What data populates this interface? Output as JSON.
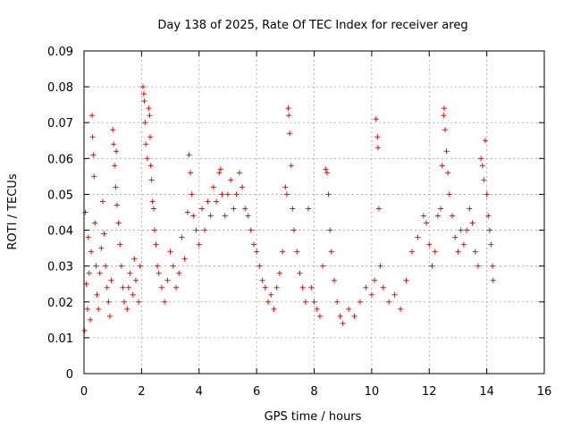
{
  "chart_data": {
    "type": "scatter",
    "title": "Day 138 of 2025, Rate Of TEC Index for receiver areg",
    "xlabel": "GPS time / hours",
    "ylabel": "ROTI / TECUs",
    "xlim": [
      0,
      16
    ],
    "ylim": [
      0,
      0.09
    ],
    "xticks": [
      "0",
      "2",
      "4",
      "6",
      "8",
      "10",
      "12",
      "14",
      "16"
    ],
    "yticks": [
      "0",
      "0.01",
      "0.02",
      "0.03",
      "0.04",
      "0.05",
      "0.06",
      "0.07",
      "0.08",
      "0.09"
    ],
    "grid": true,
    "marker": "+",
    "color": "#ff0000",
    "series": [
      {
        "points": [
          [
            0.02,
            0.012
          ],
          [
            0.05,
            0.045
          ],
          [
            0.08,
            0.025
          ],
          [
            0.12,
            0.018
          ],
          [
            0.15,
            0.038
          ],
          [
            0.18,
            0.028
          ],
          [
            0.22,
            0.015
          ],
          [
            0.25,
            0.034
          ],
          [
            0.28,
            0.072
          ],
          [
            0.3,
            0.066
          ],
          [
            0.32,
            0.061
          ],
          [
            0.35,
            0.055
          ],
          [
            0.38,
            0.042
          ],
          [
            0.42,
            0.03
          ],
          [
            0.45,
            0.022
          ],
          [
            0.5,
            0.018
          ],
          [
            0.55,
            0.028
          ],
          [
            0.6,
            0.035
          ],
          [
            0.65,
            0.048
          ],
          [
            0.7,
            0.039
          ],
          [
            0.75,
            0.03
          ],
          [
            0.8,
            0.024
          ],
          [
            0.85,
            0.02
          ],
          [
            0.9,
            0.016
          ],
          [
            0.95,
            0.026
          ],
          [
            1.0,
            0.068
          ],
          [
            1.03,
            0.064
          ],
          [
            1.06,
            0.058
          ],
          [
            1.1,
            0.052
          ],
          [
            1.12,
            0.062
          ],
          [
            1.15,
            0.047
          ],
          [
            1.2,
            0.042
          ],
          [
            1.25,
            0.036
          ],
          [
            1.3,
            0.03
          ],
          [
            1.35,
            0.024
          ],
          [
            1.4,
            0.02
          ],
          [
            1.5,
            0.018
          ],
          [
            1.55,
            0.024
          ],
          [
            1.6,
            0.028
          ],
          [
            1.7,
            0.022
          ],
          [
            1.75,
            0.032
          ],
          [
            1.8,
            0.026
          ],
          [
            1.9,
            0.02
          ],
          [
            1.95,
            0.03
          ],
          [
            2.05,
            0.08
          ],
          [
            2.08,
            0.078
          ],
          [
            2.1,
            0.076
          ],
          [
            2.12,
            0.07
          ],
          [
            2.15,
            0.064
          ],
          [
            2.2,
            0.06
          ],
          [
            2.25,
            0.074
          ],
          [
            2.28,
            0.072
          ],
          [
            2.3,
            0.066
          ],
          [
            2.32,
            0.058
          ],
          [
            2.35,
            0.054
          ],
          [
            2.38,
            0.048
          ],
          [
            2.42,
            0.046
          ],
          [
            2.45,
            0.04
          ],
          [
            2.5,
            0.036
          ],
          [
            2.55,
            0.03
          ],
          [
            2.6,
            0.028
          ],
          [
            2.7,
            0.024
          ],
          [
            2.8,
            0.02
          ],
          [
            2.9,
            0.026
          ],
          [
            3.0,
            0.034
          ],
          [
            3.1,
            0.03
          ],
          [
            3.2,
            0.024
          ],
          [
            3.3,
            0.028
          ],
          [
            3.4,
            0.038
          ],
          [
            3.5,
            0.032
          ],
          [
            3.6,
            0.045
          ],
          [
            3.65,
            0.061
          ],
          [
            3.7,
            0.056
          ],
          [
            3.75,
            0.05
          ],
          [
            3.8,
            0.044
          ],
          [
            3.9,
            0.04
          ],
          [
            4.0,
            0.036
          ],
          [
            4.1,
            0.046
          ],
          [
            4.2,
            0.04
          ],
          [
            4.3,
            0.048
          ],
          [
            4.4,
            0.044
          ],
          [
            4.5,
            0.052
          ],
          [
            4.6,
            0.048
          ],
          [
            4.7,
            0.056
          ],
          [
            4.75,
            0.057
          ],
          [
            4.8,
            0.05
          ],
          [
            4.9,
            0.044
          ],
          [
            5.0,
            0.05
          ],
          [
            5.1,
            0.054
          ],
          [
            5.2,
            0.046
          ],
          [
            5.3,
            0.05
          ],
          [
            5.4,
            0.056
          ],
          [
            5.5,
            0.052
          ],
          [
            5.6,
            0.046
          ],
          [
            5.7,
            0.044
          ],
          [
            5.8,
            0.04
          ],
          [
            5.9,
            0.036
          ],
          [
            6.0,
            0.034
          ],
          [
            6.1,
            0.03
          ],
          [
            6.2,
            0.026
          ],
          [
            6.3,
            0.024
          ],
          [
            6.4,
            0.02
          ],
          [
            6.5,
            0.022
          ],
          [
            6.6,
            0.018
          ],
          [
            6.7,
            0.024
          ],
          [
            6.8,
            0.028
          ],
          [
            6.9,
            0.034
          ],
          [
            7.0,
            0.052
          ],
          [
            7.05,
            0.05
          ],
          [
            7.1,
            0.074
          ],
          [
            7.12,
            0.072
          ],
          [
            7.15,
            0.067
          ],
          [
            7.2,
            0.058
          ],
          [
            7.25,
            0.046
          ],
          [
            7.3,
            0.04
          ],
          [
            7.4,
            0.034
          ],
          [
            7.5,
            0.028
          ],
          [
            7.6,
            0.024
          ],
          [
            7.7,
            0.02
          ],
          [
            7.8,
            0.046
          ],
          [
            7.9,
            0.024
          ],
          [
            8.0,
            0.02
          ],
          [
            8.1,
            0.018
          ],
          [
            8.2,
            0.016
          ],
          [
            8.3,
            0.03
          ],
          [
            8.4,
            0.057
          ],
          [
            8.45,
            0.056
          ],
          [
            8.5,
            0.05
          ],
          [
            8.55,
            0.04
          ],
          [
            8.6,
            0.034
          ],
          [
            8.7,
            0.026
          ],
          [
            8.8,
            0.02
          ],
          [
            8.9,
            0.016
          ],
          [
            9.0,
            0.014
          ],
          [
            9.2,
            0.018
          ],
          [
            9.4,
            0.016
          ],
          [
            9.6,
            0.02
          ],
          [
            9.8,
            0.024
          ],
          [
            10.0,
            0.022
          ],
          [
            10.1,
            0.026
          ],
          [
            10.15,
            0.071
          ],
          [
            10.2,
            0.066
          ],
          [
            10.22,
            0.063
          ],
          [
            10.25,
            0.046
          ],
          [
            10.3,
            0.03
          ],
          [
            10.4,
            0.024
          ],
          [
            10.6,
            0.02
          ],
          [
            10.8,
            0.022
          ],
          [
            11.0,
            0.018
          ],
          [
            11.2,
            0.026
          ],
          [
            11.4,
            0.034
          ],
          [
            11.6,
            0.038
          ],
          [
            11.8,
            0.044
          ],
          [
            11.9,
            0.042
          ],
          [
            12.0,
            0.036
          ],
          [
            12.1,
            0.03
          ],
          [
            12.2,
            0.034
          ],
          [
            12.3,
            0.044
          ],
          [
            12.4,
            0.046
          ],
          [
            12.45,
            0.058
          ],
          [
            12.5,
            0.072
          ],
          [
            12.52,
            0.074
          ],
          [
            12.55,
            0.068
          ],
          [
            12.6,
            0.062
          ],
          [
            12.65,
            0.056
          ],
          [
            12.7,
            0.05
          ],
          [
            12.8,
            0.044
          ],
          [
            12.9,
            0.038
          ],
          [
            13.0,
            0.034
          ],
          [
            13.1,
            0.04
          ],
          [
            13.2,
            0.036
          ],
          [
            13.3,
            0.04
          ],
          [
            13.4,
            0.046
          ],
          [
            13.5,
            0.042
          ],
          [
            13.6,
            0.034
          ],
          [
            13.7,
            0.03
          ],
          [
            13.8,
            0.06
          ],
          [
            13.85,
            0.058
          ],
          [
            13.9,
            0.054
          ],
          [
            13.95,
            0.065
          ],
          [
            14.0,
            0.05
          ],
          [
            14.05,
            0.044
          ],
          [
            14.1,
            0.04
          ],
          [
            14.15,
            0.036
          ],
          [
            14.2,
            0.03
          ],
          [
            14.22,
            0.026
          ]
        ]
      }
    ]
  }
}
